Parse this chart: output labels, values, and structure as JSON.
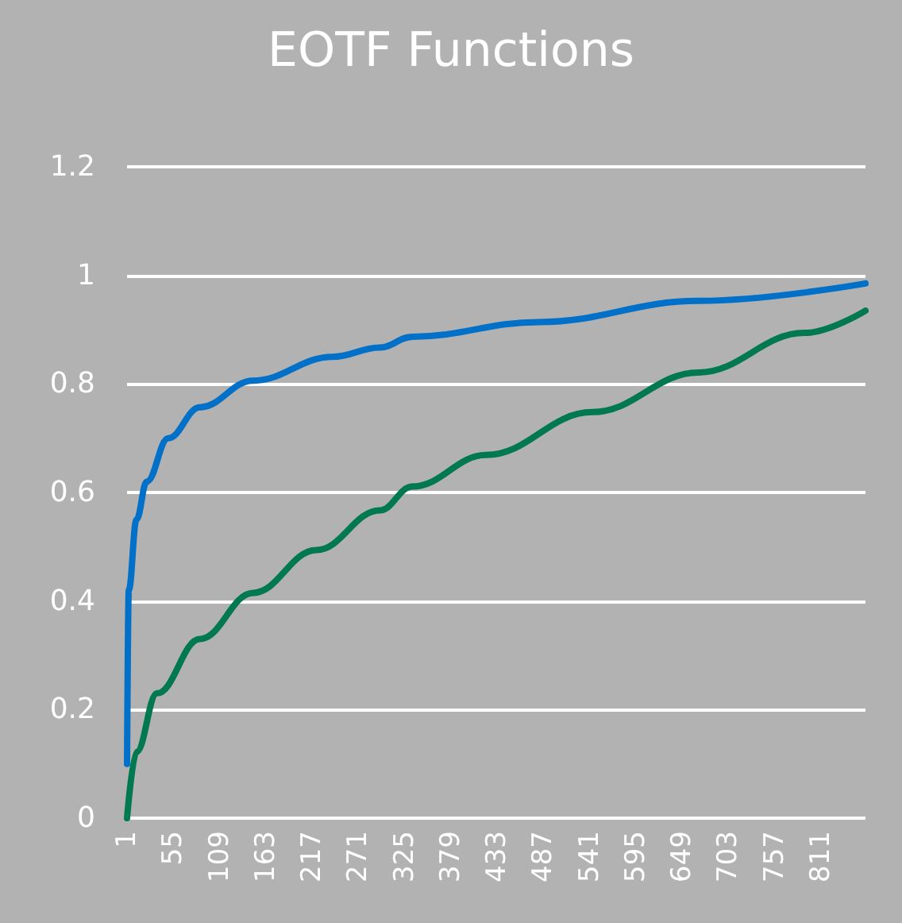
{
  "chart_data": {
    "type": "line",
    "title": "EOTF Functions",
    "xlim": [
      1,
      863
    ],
    "xticks": [
      1,
      55,
      109,
      163,
      217,
      271,
      325,
      379,
      433,
      487,
      541,
      595,
      649,
      703,
      757,
      811
    ],
    "ylim": [
      0,
      1.2
    ],
    "yticks": [
      0,
      0.2,
      0.4,
      0.6,
      0.8,
      1,
      1.2
    ],
    "grid": "y",
    "marker": "none",
    "line_style": "solid",
    "series": [
      {
        "color": "#0070c8",
        "x": [
          1,
          3,
          12,
          24,
          49,
          86,
          148,
          241,
          296,
          334,
          482,
          668,
          863
        ],
        "values": [
          0.1,
          0.42,
          0.55,
          0.62,
          0.7,
          0.757,
          0.806,
          0.85,
          0.867,
          0.887,
          0.914,
          0.953,
          0.985
        ]
      },
      {
        "color": "#007850",
        "x": [
          1,
          12,
          36,
          86,
          148,
          222,
          296,
          334,
          420,
          544,
          668,
          792,
          863
        ],
        "values": [
          0,
          0.122,
          0.23,
          0.33,
          0.415,
          0.494,
          0.567,
          0.611,
          0.669,
          0.748,
          0.821,
          0.894,
          0.935
        ]
      }
    ]
  }
}
